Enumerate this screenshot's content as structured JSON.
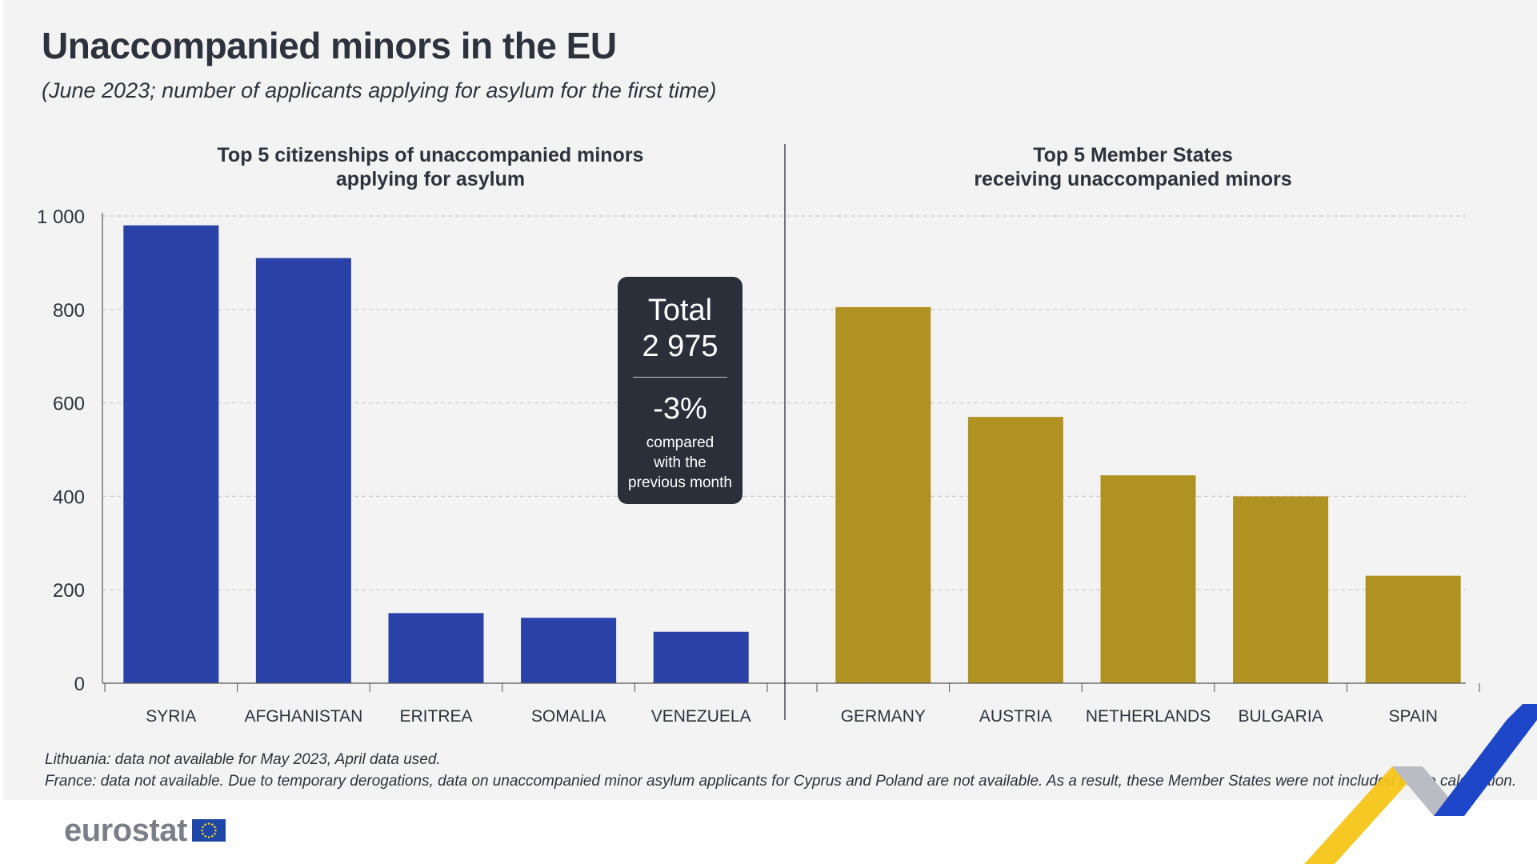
{
  "title": "Unaccompanied minors in the EU",
  "subtitle": "(June 2023; number of applicants applying for asylum for the first time)",
  "total_box": {
    "label": "Total",
    "value": "2 975",
    "change": "-3%",
    "note_line1": "compared",
    "note_line2": "with the",
    "note_line3": "previous month"
  },
  "footnotes": [
    "Lithuania: data not available for May 2023, April data used.",
    "France: data not available. Due to temporary derogations, data on unaccompanied minor asylum applicants for Cyprus and Poland are not available.  As a result, these Member States were not included in the calculation."
  ],
  "logo": {
    "text": "eurostat"
  },
  "colors": {
    "citizenships": "#2a42a7",
    "member_states": "#b09223",
    "text": "#2d323c"
  },
  "chart_data": [
    {
      "type": "bar",
      "title_line1": "Top 5 citizenships of unaccompanied minors",
      "title_line2": "applying for asylum",
      "categories": [
        "SYRIA",
        "AFGHANISTAN",
        "ERITREA",
        "SOMALIA",
        "VENEZUELA"
      ],
      "values": [
        980,
        910,
        150,
        140,
        110
      ],
      "ylim": [
        0,
        1000
      ],
      "yticks": [
        0,
        200,
        400,
        600,
        800,
        1000
      ],
      "ytick_labels": [
        "0",
        "200",
        "400",
        "600",
        "800",
        "1 000"
      ],
      "color": "#2a42a7"
    },
    {
      "type": "bar",
      "title_line1": "Top 5 Member States",
      "title_line2": "receiving unaccompanied minors",
      "categories": [
        "GERMANY",
        "AUSTRIA",
        "NETHERLANDS",
        "BULGARIA",
        "SPAIN"
      ],
      "values": [
        805,
        570,
        445,
        400,
        230
      ],
      "ylim": [
        0,
        1000
      ],
      "color": "#b09223"
    }
  ]
}
